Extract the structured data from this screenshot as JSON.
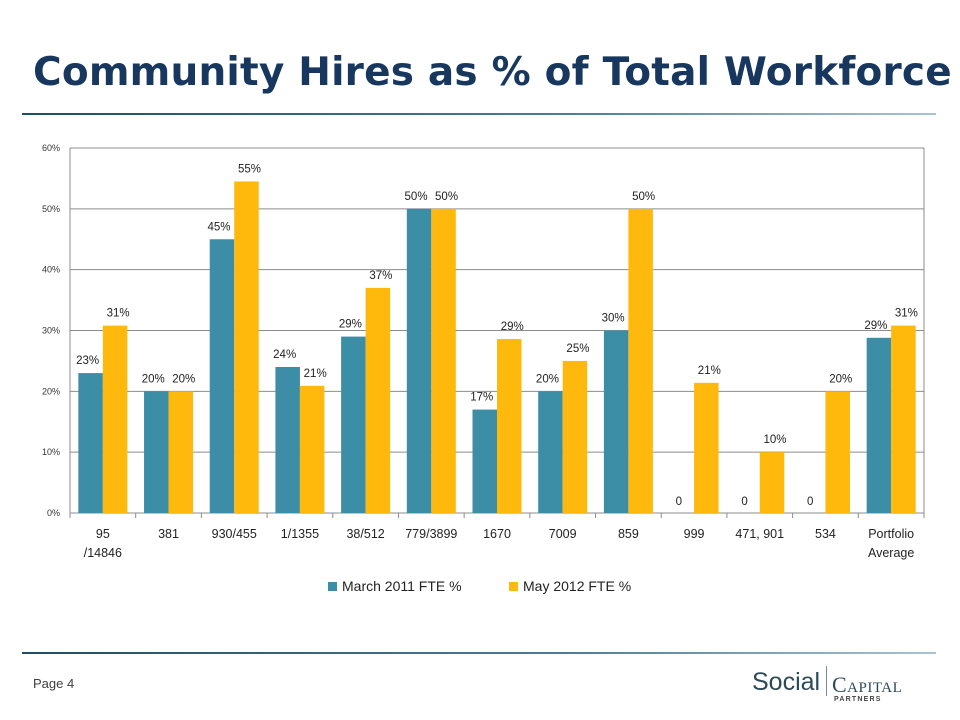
{
  "slide": {
    "title": "Community Hires as % of Total Workforce",
    "page_label": "Page 4"
  },
  "logo": {
    "word1": "Social",
    "word2": "Capital",
    "word3": "PARTNERS"
  },
  "colors": {
    "title": "#17375e",
    "series1": "#3b8ea5",
    "series2": "#ffb80c"
  },
  "chart_data": {
    "type": "bar",
    "categories": [
      [
        "95",
        "/14846"
      ],
      [
        "381"
      ],
      [
        "930/455"
      ],
      [
        "1/1355"
      ],
      [
        "38/512"
      ],
      [
        "779/3899"
      ],
      [
        "1670"
      ],
      [
        "7009"
      ],
      [
        "859"
      ],
      [
        "999"
      ],
      [
        "471, 901"
      ],
      [
        "534"
      ],
      [
        "Portfolio",
        "Average"
      ]
    ],
    "series": [
      {
        "name": "March 2011 FTE %",
        "color": "#3b8ea5",
        "values": [
          23,
          20,
          45,
          24,
          29,
          50,
          17,
          20,
          30,
          0,
          0,
          0,
          28.8
        ],
        "labels": [
          "23%",
          "20%",
          "45%",
          "24%",
          "29%",
          "50%",
          "17%",
          "20%",
          "30%",
          "0",
          "0",
          "0",
          "29%"
        ]
      },
      {
        "name": "May 2012 FTE %",
        "color": "#ffb80c",
        "values": [
          30.8,
          20,
          54.5,
          20.9,
          37,
          50,
          28.6,
          25,
          50,
          21.4,
          10,
          20,
          30.8
        ],
        "labels": [
          "31%",
          "20%",
          "55%",
          "21%",
          "37%",
          "50%",
          "29%",
          "25%",
          "50%",
          "21%",
          "10%",
          "20%",
          "31%"
        ]
      }
    ],
    "y_ticks": [
      "0%",
      "10%",
      "20%",
      "30%",
      "40%",
      "50%",
      "60%"
    ],
    "ylim": [
      0,
      60
    ],
    "legend_position": "bottom",
    "grid": true
  }
}
